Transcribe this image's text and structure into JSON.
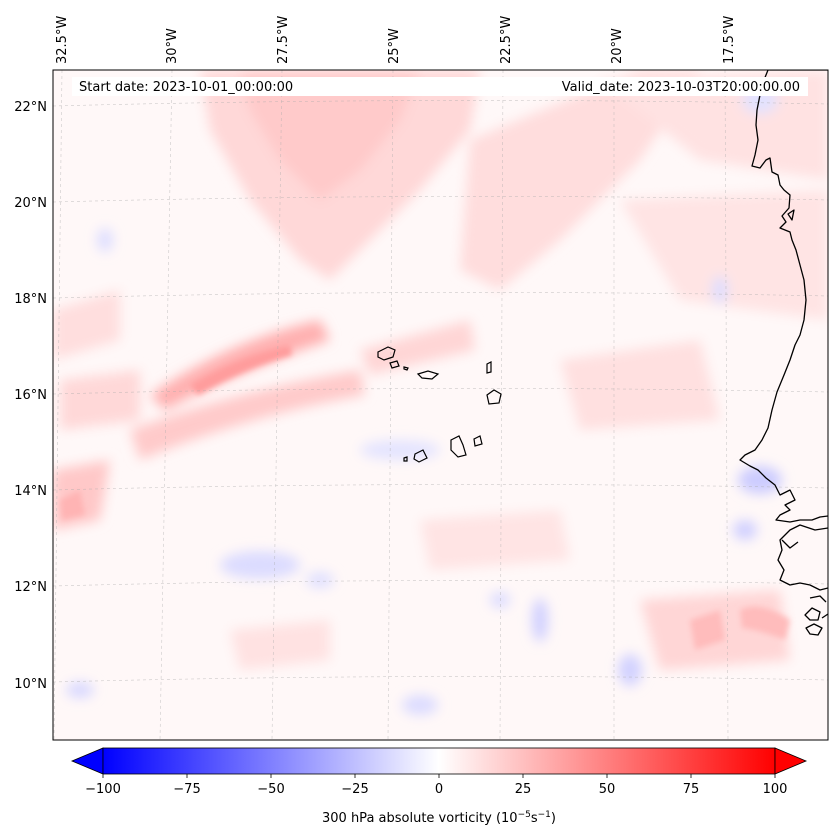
{
  "header": {
    "start_date": "Start date: 2023-10-01_00:00:00",
    "valid_date": "Valid_date: 2023-10-03T20:00:00.00"
  },
  "longitude_labels": [
    "32.5°W",
    "30°W",
    "27.5°W",
    "25°W",
    "22.5°W",
    "20°W",
    "17.5°W"
  ],
  "latitude_labels": [
    "22°N",
    "20°N",
    "18°N",
    "16°N",
    "14°N",
    "12°N",
    "10°N"
  ],
  "colorbar": {
    "ticks": [
      "−100",
      "−75",
      "−50",
      "−25",
      "0",
      "25",
      "50",
      "75",
      "100"
    ],
    "label_main": "300 hPa absolute vorticity (10",
    "label_exp1": "−5",
    "label_mid": "s",
    "label_exp2": "−1",
    "label_end": ")",
    "min_color": "#0000ff",
    "mid_color": "#ffffff",
    "max_color": "#ff0000"
  }
}
